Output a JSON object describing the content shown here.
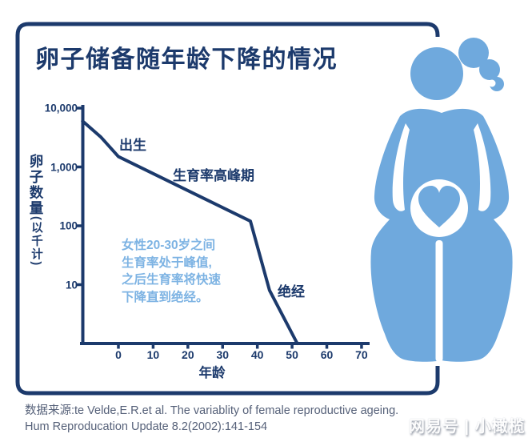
{
  "page": {
    "title": "卵子储备随年龄下降的情况",
    "source_line1": "数据来源:te Velde,E.R.et al. The variablity of female reproductive ageing.",
    "source_line2": "Hum Reproducation Update 8.2(2002):141-154",
    "watermark": "网易号 | 小橄榄"
  },
  "colors": {
    "navy": "#1c3a6c",
    "figure_blue": "#6fa9dd",
    "annotation_blue": "#7db3e3",
    "source_gray": "#566179",
    "background": "#ffffff"
  },
  "chart": {
    "ylabel_main": "卵子数量",
    "ylabel_sub": "(以千计)",
    "note_lines": [
      "女性20-30岁之间",
      "生育率处于峰值,",
      "之后生育率将快速",
      "下降直到绝经。"
    ]
  },
  "chart_data": {
    "type": "line",
    "title": "卵子储备随年龄下降的情况",
    "xlabel": "年龄",
    "ylabel": "卵子数量(以千计)",
    "y_scale": "log",
    "ylim": [
      1,
      10000
    ],
    "xlim": [
      -10,
      73
    ],
    "grid": false,
    "x_ticks": [
      "0",
      "10",
      "20",
      "30",
      "40",
      "50",
      "60",
      "70"
    ],
    "y_ticks": [
      {
        "label": "10,000",
        "value": 10000
      },
      {
        "label": "1,000",
        "value": 1000
      },
      {
        "label": "100",
        "value": 100
      },
      {
        "label": "10",
        "value": 10
      }
    ],
    "series": [
      {
        "name": "卵子数量(以千计)",
        "points": [
          [
            -10.3,
            6000
          ],
          [
            -5,
            3200
          ],
          [
            0,
            1500
          ],
          [
            38,
            120
          ],
          [
            43.5,
            8
          ],
          [
            51.5,
            1
          ]
        ]
      }
    ],
    "annotations": [
      {
        "label": "出生",
        "at_age": 0
      },
      {
        "label": "生育率高峰期",
        "at_age_range": [
          5,
          35
        ]
      },
      {
        "label": "绝经",
        "at_age": 50
      },
      {
        "label": "女性20-30岁之间生育率处于峰值,之后生育率将快速下降直到绝经。"
      }
    ]
  }
}
